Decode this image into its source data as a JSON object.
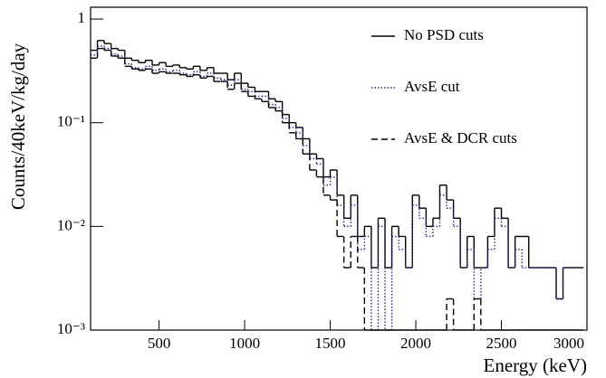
{
  "chart_data": {
    "type": "histogram",
    "x_label": "Energy (keV)",
    "y_label": "Counts/40keV/kg/day",
    "bins": [
      100,
      140,
      180,
      220,
      260,
      300,
      340,
      380,
      420,
      460,
      500,
      540,
      580,
      620,
      660,
      700,
      740,
      780,
      820,
      860,
      900,
      940,
      980,
      1020,
      1060,
      1100,
      1140,
      1180,
      1220,
      1260,
      1300,
      1340,
      1380,
      1420,
      1460,
      1500,
      1540,
      1580,
      1620,
      1660,
      1700,
      1740,
      1780,
      1820,
      1860,
      1900,
      1940,
      1980,
      2020,
      2060,
      2100,
      2140,
      2180,
      2220,
      2260,
      2300,
      2340,
      2380,
      2420,
      2460,
      2500,
      2540,
      2580,
      2620,
      2660,
      2700,
      2740,
      2780,
      2820,
      2860,
      2900,
      2940,
      2980
    ],
    "series": [
      {
        "name": "No PSD cuts",
        "color": "#000000",
        "dash": "solid",
        "values": [
          0.5,
          0.62,
          0.58,
          0.52,
          0.5,
          0.42,
          0.4,
          0.38,
          0.4,
          0.36,
          0.38,
          0.35,
          0.36,
          0.34,
          0.33,
          0.35,
          0.32,
          0.34,
          0.3,
          0.3,
          0.26,
          0.3,
          0.24,
          0.22,
          0.2,
          0.2,
          0.17,
          0.16,
          0.12,
          0.1,
          0.09,
          0.07,
          0.05,
          0.045,
          0.03,
          0.035,
          0.02,
          0.012,
          0.02,
          0.008,
          0.01,
          0.004,
          0.012,
          0.004,
          0.01,
          0.008,
          0.004,
          0.02,
          0.015,
          0.01,
          0.012,
          0.025,
          0.018,
          0.012,
          0.004,
          0.008,
          0.004,
          0.004,
          0.008,
          0.015,
          0.012,
          0.004,
          0.008,
          0.008,
          0.004,
          0.004,
          0.004,
          0.004,
          0.002,
          0.004,
          0.004,
          0.004
        ]
      },
      {
        "name": "AvsE cut",
        "color": "#2a2a9a",
        "dash": "dotted",
        "values": [
          0.45,
          0.55,
          0.52,
          0.46,
          0.44,
          0.37,
          0.34,
          0.33,
          0.35,
          0.32,
          0.33,
          0.31,
          0.32,
          0.3,
          0.29,
          0.31,
          0.28,
          0.3,
          0.27,
          0.26,
          0.23,
          0.26,
          0.21,
          0.2,
          0.18,
          0.18,
          0.15,
          0.14,
          0.11,
          0.09,
          0.08,
          0.06,
          0.045,
          0.04,
          0.025,
          0.03,
          0.016,
          0.01,
          0.016,
          0.006,
          0.008,
          0,
          0.01,
          0,
          0.008,
          0.006,
          0.004,
          0.016,
          0.012,
          0.008,
          0.01,
          0.02,
          0.015,
          0.01,
          0.004,
          0.006,
          0.002,
          0.004,
          0.006,
          0.012,
          0.01,
          0.004,
          0.006,
          0.004,
          0.004,
          0.004,
          0.004,
          0.004,
          0.002,
          0.004,
          0.004,
          0.004
        ]
      },
      {
        "name": "AvsE & DCR cuts",
        "color": "#000000",
        "dash": "dashed",
        "values": [
          0.42,
          0.52,
          0.5,
          0.44,
          0.42,
          0.35,
          0.33,
          0.32,
          0.33,
          0.3,
          0.31,
          0.3,
          0.3,
          0.29,
          0.28,
          0.29,
          0.27,
          0.28,
          0.25,
          0.25,
          0.21,
          0.24,
          0.2,
          0.18,
          0.17,
          0.16,
          0.14,
          0.13,
          0.1,
          0.08,
          0.07,
          0.05,
          0.035,
          0.03,
          0.02,
          0.018,
          0.008,
          0.004,
          0.008,
          0.004,
          0,
          0,
          0,
          0,
          0,
          0,
          0,
          0,
          0,
          0,
          0,
          0,
          0.002,
          0,
          0,
          0,
          0.002,
          0,
          0,
          0,
          0,
          0,
          0,
          0,
          0,
          0,
          0,
          0,
          0,
          0,
          0,
          0
        ]
      }
    ],
    "xlim": [
      100,
      3000
    ],
    "xticks": [
      500,
      1000,
      1500,
      2000,
      2500,
      3000
    ],
    "ylim": [
      0.001,
      1.3
    ],
    "log_y": true,
    "yticks": [
      {
        "value": 0.001,
        "label": "10⁻³"
      },
      {
        "value": 0.01,
        "label": "10⁻²"
      },
      {
        "value": 0.1,
        "label": "10⁻¹"
      },
      1
    ],
    "legend": "top-right"
  }
}
